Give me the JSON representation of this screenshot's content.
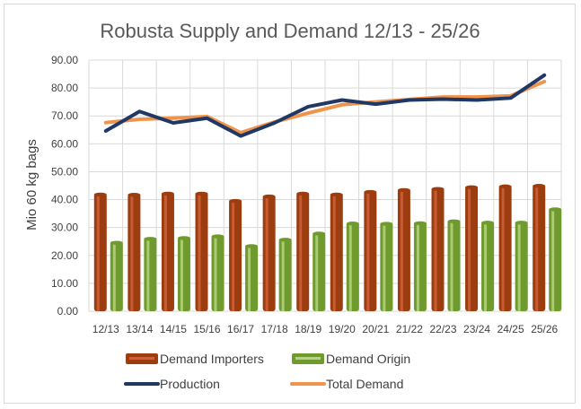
{
  "chart_data": {
    "type": "bar+line",
    "title": "Robusta Supply and Demand 12/13 - 25/26",
    "xlabel": "",
    "ylabel": "Mio 60 kg bags",
    "ylim": [
      0,
      90
    ],
    "yticks": [
      "0.00",
      "10.00",
      "20.00",
      "30.00",
      "40.00",
      "50.00",
      "60.00",
      "70.00",
      "80.00",
      "90.00"
    ],
    "grid": true,
    "legend_position": "bottom",
    "categories": [
      "12/13",
      "13/14",
      "14/15",
      "15/16",
      "16/17",
      "17/18",
      "18/19",
      "19/20",
      "20/21",
      "21/22",
      "22/23",
      "23/24",
      "24/25",
      "25/26"
    ],
    "series": [
      {
        "name": "Demand Importers",
        "kind": "bar",
        "color": "#9c3d0f",
        "highlight": "#d0603a",
        "values": [
          42.3,
          42.2,
          42.6,
          42.6,
          40.0,
          41.6,
          42.6,
          42.3,
          43.2,
          43.9,
          44.3,
          44.9,
          45.2,
          45.4
        ]
      },
      {
        "name": "Demand Origin",
        "kind": "bar",
        "color": "#6f9a2e",
        "highlight": "#b5d47e",
        "values": [
          25.0,
          26.4,
          26.7,
          27.3,
          23.8,
          26.1,
          28.3,
          31.9,
          31.8,
          32.0,
          32.7,
          32.2,
          32.2,
          37.0
        ]
      },
      {
        "name": "Production",
        "kind": "line",
        "color": "#203864",
        "values": [
          64.6,
          71.6,
          67.5,
          69.2,
          62.8,
          67.5,
          73.3,
          75.7,
          74.2,
          75.7,
          76.0,
          75.7,
          76.4,
          84.6
        ]
      },
      {
        "name": "Total Demand",
        "kind": "line",
        "color": "#f0944d",
        "values": [
          67.6,
          68.8,
          69.2,
          69.8,
          64.0,
          67.8,
          71.0,
          74.0,
          75.0,
          75.9,
          76.8,
          76.8,
          77.2,
          82.3
        ]
      }
    ]
  }
}
